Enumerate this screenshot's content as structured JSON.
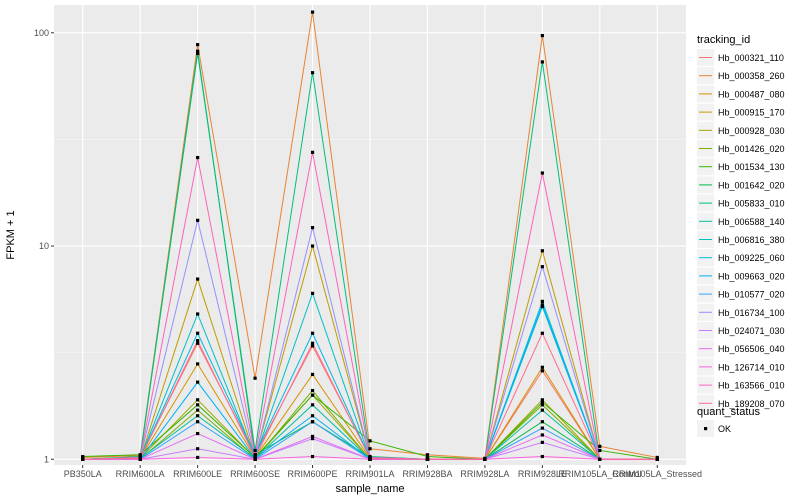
{
  "chart_data": {
    "type": "line",
    "xlabel": "sample_name",
    "ylabel": "FPKM + 1",
    "y_scale": "log10",
    "ylim": [
      0.94,
      135
    ],
    "y_ticks": [
      1,
      10,
      100
    ],
    "y_tick_labels": [
      "1",
      "10",
      "100"
    ],
    "grid": true,
    "legend_position": "right",
    "legend_title": "tracking_id",
    "shape_legend_title": "quant_status",
    "shape_legend_items": [
      "OK"
    ],
    "categories": [
      "PB350LA",
      "RRIM600LA",
      "RRIM600LE",
      "RRIM600SE",
      "RRIM600PE",
      "RRIM901LA",
      "RRIM928BA",
      "RRIM928LA",
      "RRIM928LE",
      "RRIM105LA_Control",
      "RRIM105LA_Stressed"
    ],
    "series": [
      {
        "name": "Hb_000321_110",
        "color": "#F8766D",
        "values": [
          1.0,
          1.02,
          3.5,
          1.05,
          3.4,
          1.02,
          1.0,
          1.0,
          2.6,
          1.0,
          1.0
        ]
      },
      {
        "name": "Hb_000358_260",
        "color": "#EA8331",
        "values": [
          1.02,
          1.04,
          88,
          2.4,
          125,
          1.12,
          1.05,
          1.01,
          97,
          1.15,
          1.02
        ]
      },
      {
        "name": "Hb_000487_080",
        "color": "#D89000",
        "values": [
          1.0,
          1.01,
          2.8,
          1.02,
          2.5,
          1.01,
          1.0,
          1.0,
          2.7,
          1.0,
          1.0
        ]
      },
      {
        "name": "Hb_000915_170",
        "color": "#C09B00",
        "values": [
          1.0,
          1.0,
          7.0,
          1.02,
          10.0,
          1.01,
          1.0,
          1.0,
          9.5,
          1.0,
          1.0
        ]
      },
      {
        "name": "Hb_000928_030",
        "color": "#A3A500",
        "values": [
          1.0,
          1.01,
          1.9,
          1.01,
          2.0,
          1.0,
          1.0,
          1.0,
          1.9,
          1.0,
          1.0
        ]
      },
      {
        "name": "Hb_001426_020",
        "color": "#7CAE00",
        "values": [
          1.0,
          1.0,
          1.7,
          1.0,
          2.1,
          1.0,
          1.0,
          1.0,
          1.8,
          1.0,
          1.0
        ]
      },
      {
        "name": "Hb_001534_130",
        "color": "#39B600",
        "values": [
          1.03,
          1.05,
          1.8,
          1.02,
          2.0,
          1.22,
          1.03,
          1.0,
          1.85,
          1.1,
          1.0
        ]
      },
      {
        "name": "Hb_001642_020",
        "color": "#00BB4E",
        "values": [
          1.0,
          1.02,
          82,
          1.05,
          1.5,
          1.02,
          1.0,
          1.0,
          1.5,
          1.0,
          1.0
        ]
      },
      {
        "name": "Hb_005833_010",
        "color": "#00BF7D",
        "values": [
          1.0,
          1.03,
          80,
          1.1,
          65,
          1.03,
          1.0,
          1.0,
          73,
          1.0,
          1.0
        ]
      },
      {
        "name": "Hb_006588_140",
        "color": "#00C1A3",
        "values": [
          1.0,
          1.01,
          1.6,
          1.01,
          1.8,
          1.0,
          1.0,
          1.0,
          1.7,
          1.0,
          1.0
        ]
      },
      {
        "name": "Hb_006816_380",
        "color": "#00BFC4",
        "values": [
          1.0,
          1.01,
          4.8,
          1.02,
          6.0,
          1.0,
          1.0,
          1.0,
          5.2,
          1.0,
          1.0
        ]
      },
      {
        "name": "Hb_009225_060",
        "color": "#00BAE0",
        "values": [
          1.0,
          1.01,
          3.9,
          1.05,
          3.9,
          1.01,
          1.0,
          1.0,
          5.5,
          1.0,
          1.0
        ]
      },
      {
        "name": "Hb_009663_020",
        "color": "#00B0F6",
        "values": [
          1.0,
          1.0,
          2.3,
          1.01,
          1.6,
          1.0,
          1.0,
          1.0,
          5.3,
          1.0,
          1.0
        ]
      },
      {
        "name": "Hb_010577_020",
        "color": "#35A2FF",
        "values": [
          1.0,
          1.0,
          1.5,
          1.0,
          1.5,
          1.0,
          1.0,
          1.0,
          1.4,
          1.0,
          1.0
        ]
      },
      {
        "name": "Hb_016734_100",
        "color": "#9590FF",
        "values": [
          1.0,
          1.01,
          13.2,
          1.02,
          12.2,
          1.01,
          1.0,
          1.0,
          8.0,
          1.0,
          1.0
        ]
      },
      {
        "name": "Hb_024071_030",
        "color": "#C77CFF",
        "values": [
          1.0,
          1.0,
          1.12,
          1.0,
          1.25,
          1.0,
          1.0,
          1.0,
          1.2,
          1.0,
          1.0
        ]
      },
      {
        "name": "Hb_056506_040",
        "color": "#E76BF3",
        "values": [
          1.0,
          1.0,
          1.32,
          1.0,
          1.28,
          1.0,
          1.0,
          1.0,
          1.3,
          1.0,
          1.0
        ]
      },
      {
        "name": "Hb_126714_010",
        "color": "#FA62DB",
        "values": [
          1.0,
          1.0,
          1.02,
          1.0,
          1.03,
          1.0,
          1.0,
          1.0,
          1.03,
          1.0,
          1.0
        ]
      },
      {
        "name": "Hb_163566_010",
        "color": "#FF62BC",
        "values": [
          1.0,
          1.02,
          26,
          1.05,
          27.5,
          1.02,
          1.0,
          1.0,
          22,
          1.0,
          1.0
        ]
      },
      {
        "name": "Hb_189208_070",
        "color": "#FF6C91",
        "values": [
          1.0,
          1.01,
          3.6,
          1.02,
          3.5,
          1.01,
          1.0,
          1.0,
          3.9,
          1.0,
          1.0
        ]
      }
    ]
  }
}
